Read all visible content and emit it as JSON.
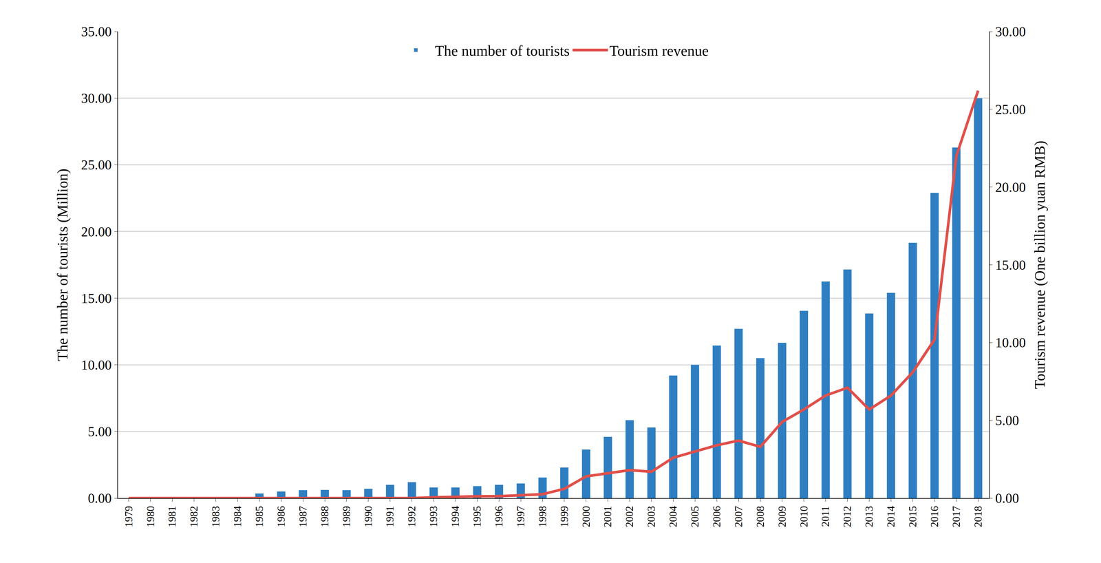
{
  "chart_data": {
    "type": "bar",
    "categories": [
      "1979",
      "1980",
      "1981",
      "1982",
      "1983",
      "1984",
      "1985",
      "1986",
      "1987",
      "1988",
      "1989",
      "1990",
      "1991",
      "1992",
      "1993",
      "1994",
      "1995",
      "1996",
      "1997",
      "1998",
      "1999",
      "2000",
      "2001",
      "2002",
      "2003",
      "2004",
      "2005",
      "2006",
      "2007",
      "2008",
      "2009",
      "2010",
      "2011",
      "2012",
      "2013",
      "2014",
      "2015",
      "2016",
      "2017",
      "2018"
    ],
    "series": [
      {
        "name": "The number of tourists",
        "type": "bar",
        "color": "#2e7ec1",
        "values": [
          0,
          0,
          0,
          0,
          0,
          0,
          0.35,
          0.5,
          0.6,
          0.62,
          0.6,
          0.7,
          1.0,
          1.2,
          0.8,
          0.8,
          0.9,
          1.0,
          1.1,
          1.55,
          2.3,
          3.65,
          4.6,
          5.85,
          5.3,
          9.2,
          10.0,
          11.45,
          12.7,
          10.5,
          11.65,
          14.05,
          16.25,
          17.15,
          13.85,
          15.4,
          19.15,
          22.9,
          26.3,
          30.0
        ]
      },
      {
        "name": "Tourism revenue",
        "type": "line",
        "color": "#e0504a",
        "axis": "y2",
        "values": [
          0,
          0,
          0,
          0,
          0,
          0,
          0,
          0,
          0,
          0,
          0,
          0,
          0,
          0,
          0.05,
          0.1,
          0.12,
          0.13,
          0.2,
          0.25,
          0.6,
          1.4,
          1.6,
          1.8,
          1.7,
          2.6,
          3.0,
          3.4,
          3.7,
          3.3,
          4.9,
          5.7,
          6.6,
          7.1,
          5.7,
          6.6,
          8.1,
          10.2,
          22.0,
          26.2
        ]
      }
    ],
    "ylabel": "The number of tourists (Million)",
    "y2label": "Tourism revenue (One billion yuan RMB)",
    "ylim": [
      0,
      35
    ],
    "yticks": [
      {
        "value": 0,
        "label": "0.00"
      },
      {
        "value": 5,
        "label": "5.00"
      },
      {
        "value": 10,
        "label": "10.00"
      },
      {
        "value": 15,
        "label": "15.00"
      },
      {
        "value": 20,
        "label": "20.00"
      },
      {
        "value": 25,
        "label": "25.00"
      },
      {
        "value": 30,
        "label": "30.00"
      },
      {
        "value": 35,
        "label": "35.00"
      }
    ],
    "y2lim": [
      0,
      30
    ],
    "y2ticks": [
      {
        "value": 0,
        "label": "0.00"
      },
      {
        "value": 5,
        "label": "5.00"
      },
      {
        "value": 10,
        "label": "10.00"
      },
      {
        "value": 15,
        "label": "15.00"
      },
      {
        "value": 20,
        "label": "20.00"
      },
      {
        "value": 25,
        "label": "25.00"
      },
      {
        "value": 30,
        "label": "30.00"
      }
    ],
    "grid": true,
    "legend": "top"
  }
}
